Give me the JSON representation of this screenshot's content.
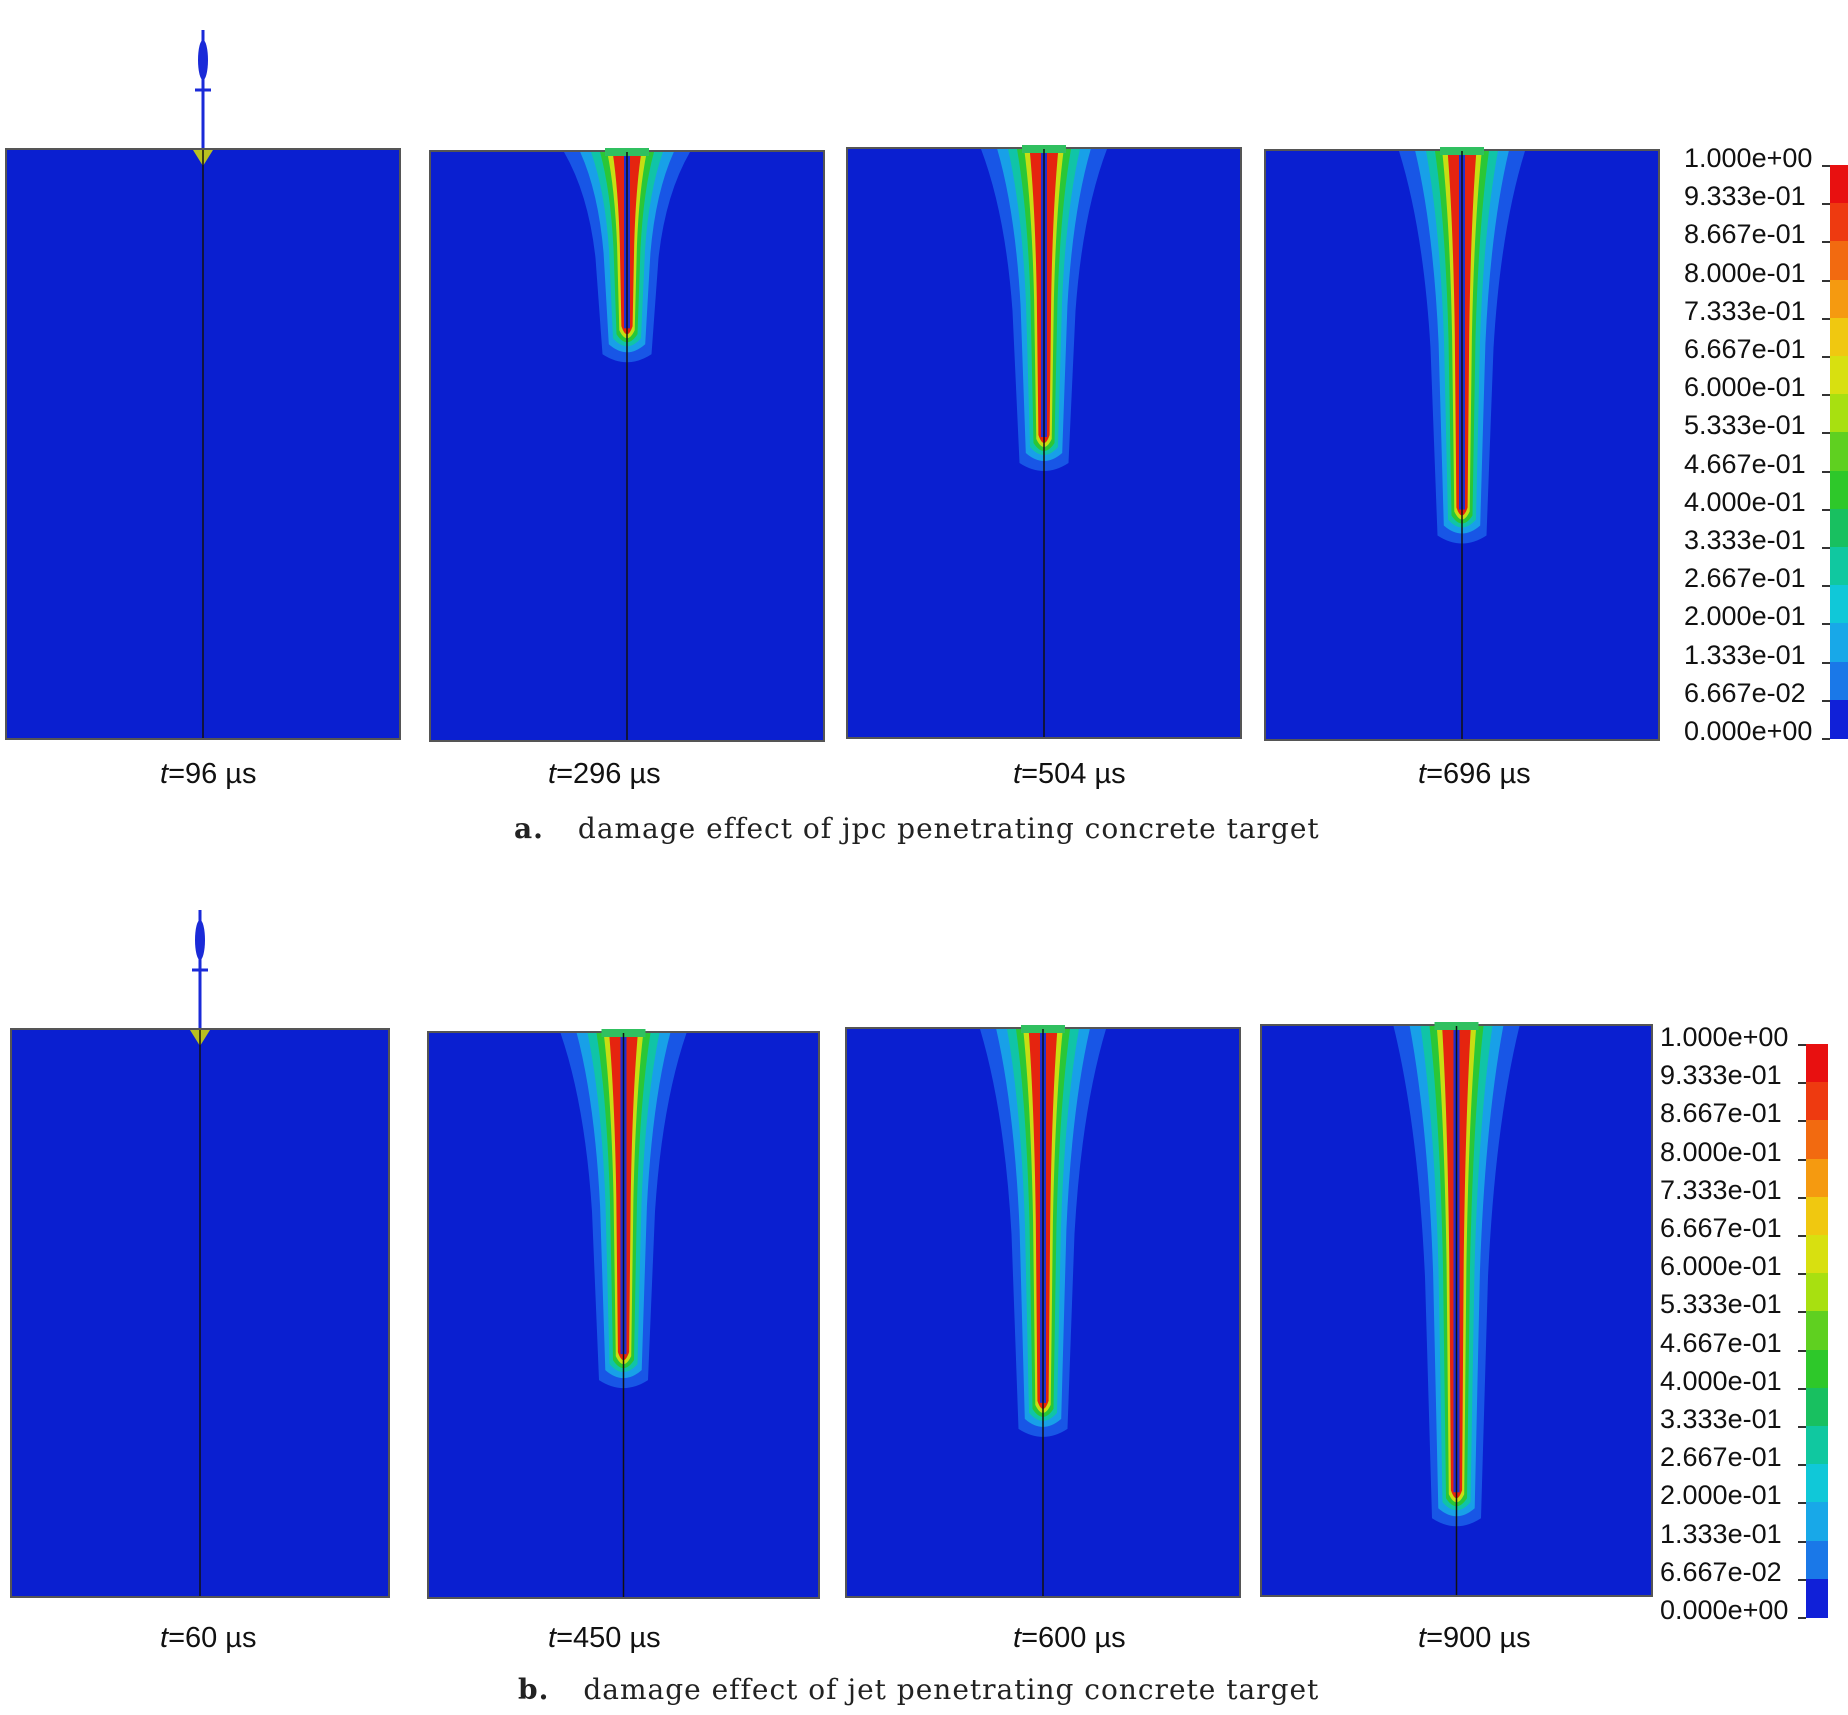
{
  "panels": [
    {
      "id": "a",
      "caption_letter": "a.",
      "caption_text": "damage effect of jpc penetrating concrete target",
      "times": [
        {
          "label_t": "t",
          "label_rest": "=96 µs",
          "depth": 0.04
        },
        {
          "label_t": "t",
          "label_rest": "=296 µs",
          "depth": 0.31
        },
        {
          "label_t": "t",
          "label_rest": "=504 µs",
          "depth": 0.5
        },
        {
          "label_t": "t",
          "label_rest": "=696 µs",
          "depth": 0.62
        }
      ]
    },
    {
      "id": "b",
      "caption_letter": "b.",
      "caption_text": "damage effect of jet penetrating concrete target",
      "times": [
        {
          "label_t": "t",
          "label_rest": "=60 µs",
          "depth": 0.02
        },
        {
          "label_t": "t",
          "label_rest": "=450 µs",
          "depth": 0.58
        },
        {
          "label_t": "t",
          "label_rest": "=600 µs",
          "depth": 0.67
        },
        {
          "label_t": "t",
          "label_rest": "=900 µs",
          "depth": 0.83
        }
      ]
    }
  ],
  "legend": {
    "values": [
      "1.000e+00",
      "9.333e-01",
      "8.667e-01",
      "8.000e-01",
      "7.333e-01",
      "6.667e-01",
      "6.000e-01",
      "5.333e-01",
      "4.667e-01",
      "4.000e-01",
      "3.333e-01",
      "2.667e-01",
      "2.000e-01",
      "1.333e-01",
      "6.667e-02",
      "0.000e+00"
    ],
    "colors": [
      "#e81010",
      "#ee3a10",
      "#f26a10",
      "#f59a10",
      "#f0c810",
      "#d8e010",
      "#a8e010",
      "#5fd020",
      "#2ec82a",
      "#18c060",
      "#10c8a0",
      "#10c8d8",
      "#18a8e8",
      "#1a78e8",
      "#1848e0",
      "#1020d8"
    ]
  }
}
